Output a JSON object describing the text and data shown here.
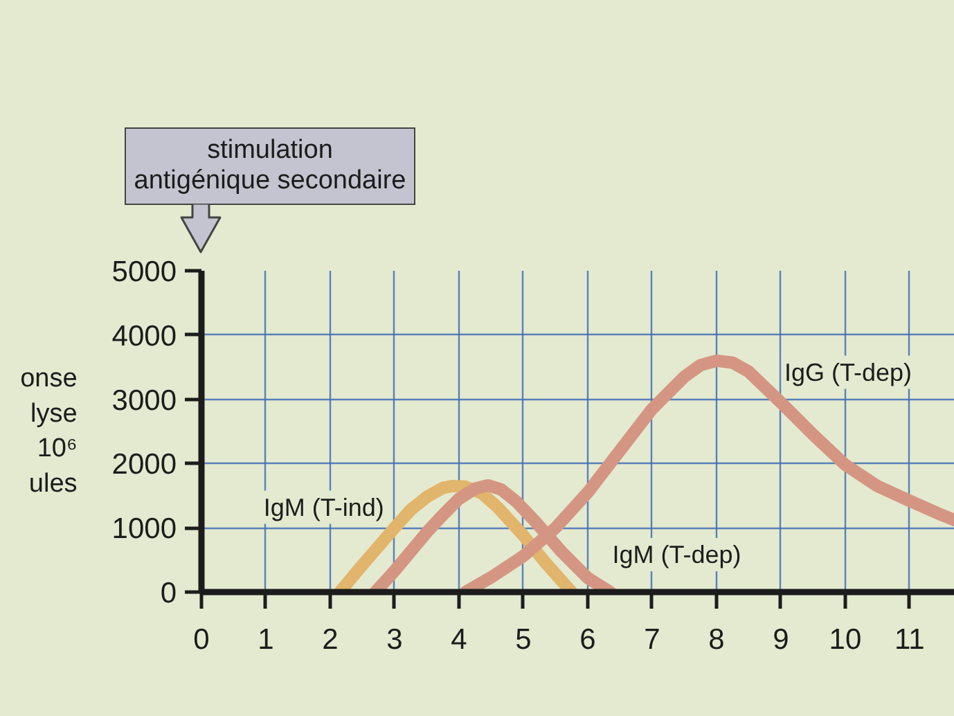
{
  "chart_data": {
    "type": "line",
    "ylabel": "onse\nlyse\n10⁶\nules",
    "annotations": [
      "stimulation antigénique secondaire"
    ],
    "xlim": [
      0,
      11.7
    ],
    "ylim": [
      0,
      5000
    ],
    "xticks": [
      0,
      1,
      2,
      3,
      4,
      5,
      6,
      7,
      8,
      9,
      10,
      11
    ],
    "yticks": [
      0,
      1000,
      2000,
      3000,
      4000,
      5000
    ],
    "grid": true,
    "series": [
      {
        "name": "IgM (T-ind)",
        "color": "#e2b56c",
        "x": [
          2.15,
          2.5,
          3.0,
          3.25,
          3.5,
          3.75,
          3.9,
          4.1,
          4.35,
          4.6,
          5.0,
          5.35,
          5.75
        ],
        "values": [
          0,
          420,
          1000,
          1280,
          1480,
          1620,
          1650,
          1640,
          1540,
          1320,
          880,
          450,
          0
        ]
      },
      {
        "name": "IgM (T-dep)",
        "color": "#d49682",
        "x": [
          2.7,
          3.0,
          3.5,
          3.75,
          4.0,
          4.25,
          4.45,
          4.65,
          4.9,
          5.2,
          5.6,
          6.0,
          6.35
        ],
        "values": [
          0,
          330,
          930,
          1200,
          1450,
          1610,
          1660,
          1600,
          1400,
          1080,
          620,
          220,
          0
        ]
      },
      {
        "name": "IgG (T-dep)",
        "color": "#d49682",
        "x": [
          4.1,
          4.5,
          5.0,
          5.5,
          6.0,
          6.5,
          7.0,
          7.5,
          7.75,
          8.0,
          8.25,
          8.5,
          9.0,
          9.5,
          10.0,
          10.5,
          11.0,
          11.5,
          11.7
        ],
        "values": [
          0,
          230,
          560,
          1000,
          1550,
          2200,
          2850,
          3350,
          3530,
          3600,
          3570,
          3430,
          2950,
          2450,
          1980,
          1650,
          1420,
          1200,
          1120
        ]
      }
    ]
  }
}
